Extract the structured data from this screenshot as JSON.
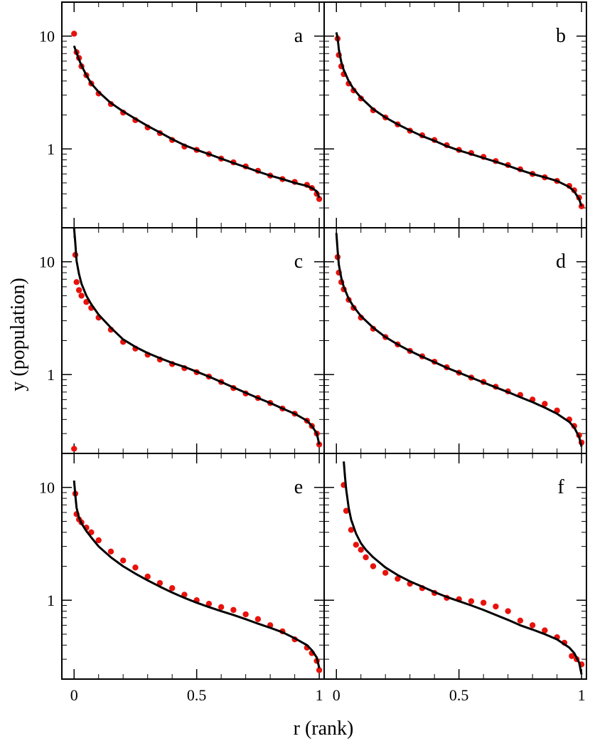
{
  "chart_data": {
    "type": "scatter",
    "xlabel": "r (rank)",
    "ylabel": "y (population)",
    "xlim": [
      -0.05,
      1.02
    ],
    "ylim": [
      0.2,
      20
    ],
    "y_scale": "log",
    "x_ticks": [
      0,
      0.5,
      1
    ],
    "x_tick_labels": [
      "0",
      "0.5",
      "1"
    ],
    "y_ticks": [
      1,
      10
    ],
    "y_tick_labels": [
      "1",
      "10"
    ],
    "grid": false,
    "colors": {
      "points": "#e8120c",
      "curve": "#000000",
      "frame": "#000000"
    },
    "panels": [
      {
        "label": "a",
        "series": [
          {
            "kind": "points",
            "x": [
              0.0,
              0.01,
              0.02,
              0.03,
              0.05,
              0.07,
              0.1,
              0.15,
              0.2,
              0.25,
              0.3,
              0.35,
              0.4,
              0.45,
              0.5,
              0.55,
              0.6,
              0.65,
              0.7,
              0.75,
              0.8,
              0.85,
              0.9,
              0.95,
              0.97,
              0.99,
              1.0
            ],
            "y": [
              10.5,
              7.2,
              6.4,
              5.4,
              4.5,
              3.8,
              3.1,
              2.5,
              2.1,
              1.8,
              1.55,
              1.38,
              1.2,
              1.05,
              0.98,
              0.9,
              0.82,
              0.76,
              0.7,
              0.64,
              0.58,
              0.54,
              0.51,
              0.48,
              0.45,
              0.4,
              0.36
            ]
          },
          {
            "kind": "curve",
            "x": [
              0.0,
              0.01,
              0.02,
              0.03,
              0.05,
              0.07,
              0.1,
              0.15,
              0.2,
              0.25,
              0.3,
              0.35,
              0.4,
              0.45,
              0.5,
              0.55,
              0.6,
              0.65,
              0.7,
              0.75,
              0.8,
              0.85,
              0.9,
              0.95,
              0.97,
              0.99,
              1.0
            ],
            "y": [
              8.2,
              7.1,
              6.2,
              5.5,
              4.5,
              3.8,
              3.2,
              2.55,
              2.15,
              1.85,
              1.6,
              1.4,
              1.22,
              1.08,
              0.98,
              0.9,
              0.82,
              0.75,
              0.69,
              0.63,
              0.58,
              0.54,
              0.5,
              0.47,
              0.45,
              0.42,
              0.37
            ]
          }
        ]
      },
      {
        "label": "b",
        "series": [
          {
            "kind": "points",
            "x": [
              0.005,
              0.01,
              0.02,
              0.03,
              0.05,
              0.07,
              0.1,
              0.15,
              0.2,
              0.25,
              0.3,
              0.35,
              0.4,
              0.45,
              0.5,
              0.55,
              0.6,
              0.65,
              0.7,
              0.75,
              0.8,
              0.85,
              0.9,
              0.95,
              0.97,
              0.99,
              1.0
            ],
            "y": [
              9.5,
              6.8,
              5.4,
              4.6,
              3.8,
              3.3,
              2.8,
              2.2,
              1.9,
              1.65,
              1.45,
              1.32,
              1.2,
              1.08,
              0.98,
              0.92,
              0.85,
              0.78,
              0.72,
              0.66,
              0.6,
              0.56,
              0.52,
              0.47,
              0.43,
              0.37,
              0.31
            ]
          },
          {
            "kind": "curve",
            "x": [
              0.0,
              0.005,
              0.01,
              0.02,
              0.03,
              0.05,
              0.07,
              0.1,
              0.15,
              0.2,
              0.25,
              0.3,
              0.35,
              0.4,
              0.45,
              0.5,
              0.55,
              0.6,
              0.65,
              0.7,
              0.75,
              0.8,
              0.85,
              0.9,
              0.95,
              0.97,
              0.99,
              1.0
            ],
            "y": [
              10.8,
              9.6,
              7.6,
              5.9,
              5.0,
              4.0,
              3.4,
              2.85,
              2.25,
              1.9,
              1.65,
              1.46,
              1.3,
              1.18,
              1.06,
              0.97,
              0.9,
              0.83,
              0.77,
              0.71,
              0.65,
              0.6,
              0.56,
              0.52,
              0.46,
              0.42,
              0.36,
              0.31
            ]
          }
        ]
      },
      {
        "label": "c",
        "series": [
          {
            "kind": "points",
            "x": [
              0.0,
              0.005,
              0.01,
              0.02,
              0.03,
              0.05,
              0.07,
              0.1,
              0.15,
              0.2,
              0.25,
              0.3,
              0.35,
              0.4,
              0.45,
              0.5,
              0.55,
              0.6,
              0.65,
              0.7,
              0.75,
              0.8,
              0.85,
              0.9,
              0.95,
              0.97,
              0.99,
              1.0
            ],
            "y": [
              0.22,
              11.5,
              6.6,
              5.6,
              5.0,
              4.4,
              3.9,
              3.2,
              2.5,
              1.95,
              1.7,
              1.5,
              1.36,
              1.24,
              1.14,
              1.05,
              0.96,
              0.86,
              0.76,
              0.68,
              0.62,
              0.56,
              0.5,
              0.45,
              0.39,
              0.35,
              0.3,
              0.24
            ]
          },
          {
            "kind": "curve",
            "x": [
              0.0,
              0.005,
              0.01,
              0.02,
              0.03,
              0.05,
              0.07,
              0.1,
              0.15,
              0.2,
              0.25,
              0.3,
              0.35,
              0.4,
              0.45,
              0.5,
              0.55,
              0.6,
              0.65,
              0.7,
              0.75,
              0.8,
              0.85,
              0.9,
              0.95,
              0.97,
              0.99,
              1.0
            ],
            "y": [
              20,
              14.5,
              10.2,
              7.8,
              6.4,
              5.0,
              4.2,
              3.4,
              2.6,
              2.05,
              1.76,
              1.55,
              1.4,
              1.27,
              1.17,
              1.06,
              0.96,
              0.86,
              0.77,
              0.69,
              0.62,
              0.56,
              0.5,
              0.45,
              0.39,
              0.35,
              0.3,
              0.24
            ]
          }
        ]
      },
      {
        "label": "d",
        "series": [
          {
            "kind": "points",
            "x": [
              0.005,
              0.01,
              0.02,
              0.03,
              0.05,
              0.07,
              0.1,
              0.15,
              0.2,
              0.25,
              0.3,
              0.35,
              0.4,
              0.45,
              0.5,
              0.55,
              0.6,
              0.65,
              0.7,
              0.75,
              0.8,
              0.85,
              0.9,
              0.95,
              0.97,
              0.99,
              1.0
            ],
            "y": [
              11.0,
              8.0,
              6.6,
              5.7,
              4.6,
              3.9,
              3.2,
              2.55,
              2.15,
              1.85,
              1.62,
              1.45,
              1.3,
              1.16,
              1.04,
              0.94,
              0.86,
              0.78,
              0.71,
              0.66,
              0.6,
              0.55,
              0.48,
              0.4,
              0.35,
              0.29,
              0.25
            ]
          },
          {
            "kind": "curve",
            "x": [
              0.0,
              0.005,
              0.01,
              0.02,
              0.03,
              0.05,
              0.07,
              0.1,
              0.15,
              0.2,
              0.25,
              0.3,
              0.35,
              0.4,
              0.45,
              0.5,
              0.55,
              0.6,
              0.65,
              0.7,
              0.75,
              0.8,
              0.85,
              0.9,
              0.95,
              0.97,
              0.99,
              1.0
            ],
            "y": [
              18,
              12.5,
              9.4,
              7.2,
              6.0,
              4.7,
              4.0,
              3.3,
              2.6,
              2.15,
              1.85,
              1.62,
              1.44,
              1.29,
              1.15,
              1.04,
              0.94,
              0.85,
              0.77,
              0.7,
              0.63,
              0.57,
              0.51,
              0.45,
              0.38,
              0.34,
              0.28,
              0.23
            ]
          }
        ]
      },
      {
        "label": "e",
        "series": [
          {
            "kind": "points",
            "x": [
              0.005,
              0.01,
              0.02,
              0.03,
              0.05,
              0.07,
              0.1,
              0.15,
              0.2,
              0.25,
              0.3,
              0.35,
              0.4,
              0.45,
              0.5,
              0.55,
              0.6,
              0.65,
              0.7,
              0.75,
              0.8,
              0.85,
              0.9,
              0.95,
              0.97,
              0.99,
              1.0
            ],
            "y": [
              8.8,
              5.8,
              5.2,
              4.9,
              4.4,
              4.0,
              3.4,
              2.7,
              2.25,
              1.95,
              1.62,
              1.42,
              1.28,
              1.12,
              1.0,
              0.93,
              0.87,
              0.82,
              0.75,
              0.68,
              0.6,
              0.53,
              0.45,
              0.38,
              0.34,
              0.29,
              0.24
            ]
          },
          {
            "kind": "curve",
            "x": [
              0.0,
              0.005,
              0.01,
              0.02,
              0.03,
              0.05,
              0.07,
              0.1,
              0.15,
              0.2,
              0.25,
              0.3,
              0.35,
              0.4,
              0.45,
              0.5,
              0.55,
              0.6,
              0.65,
              0.7,
              0.75,
              0.8,
              0.85,
              0.9,
              0.95,
              0.97,
              0.99,
              1.0
            ],
            "y": [
              11.5,
              8.5,
              6.6,
              5.4,
              4.8,
              4.1,
              3.6,
              3.0,
              2.4,
              2.0,
              1.72,
              1.5,
              1.32,
              1.17,
              1.05,
              0.95,
              0.87,
              0.8,
              0.74,
              0.68,
              0.62,
              0.57,
              0.52,
              0.46,
              0.4,
              0.36,
              0.31,
              0.25
            ]
          }
        ]
      },
      {
        "label": "f",
        "series": [
          {
            "kind": "points",
            "x": [
              0.03,
              0.04,
              0.06,
              0.08,
              0.1,
              0.12,
              0.15,
              0.2,
              0.25,
              0.3,
              0.35,
              0.4,
              0.45,
              0.5,
              0.55,
              0.6,
              0.65,
              0.7,
              0.75,
              0.8,
              0.85,
              0.9,
              0.93,
              0.96,
              0.98,
              1.0
            ],
            "y": [
              10.5,
              6.2,
              4.2,
              3.1,
              2.8,
              2.4,
              2.0,
              1.75,
              1.55,
              1.4,
              1.28,
              1.16,
              1.05,
              1.02,
              0.98,
              0.95,
              0.88,
              0.8,
              0.66,
              0.6,
              0.54,
              0.47,
              0.42,
              0.32,
              0.3,
              0.27
            ]
          },
          {
            "kind": "curve",
            "x": [
              0.03,
              0.035,
              0.04,
              0.05,
              0.06,
              0.08,
              0.1,
              0.12,
              0.15,
              0.2,
              0.25,
              0.3,
              0.35,
              0.4,
              0.45,
              0.5,
              0.55,
              0.6,
              0.65,
              0.7,
              0.75,
              0.8,
              0.85,
              0.9,
              0.95,
              0.97,
              0.99,
              1.0
            ],
            "y": [
              17,
              12.5,
              9.6,
              6.6,
              5.2,
              3.9,
              3.2,
              2.8,
              2.4,
              1.95,
              1.67,
              1.47,
              1.32,
              1.18,
              1.07,
              0.98,
              0.9,
              0.82,
              0.74,
              0.67,
              0.6,
              0.55,
              0.5,
              0.45,
              0.38,
              0.34,
              0.28,
              0.22
            ]
          }
        ]
      }
    ]
  }
}
